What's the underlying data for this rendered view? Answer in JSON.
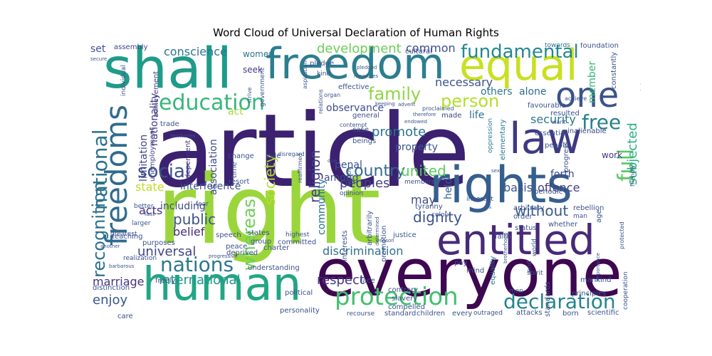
{
  "title": "Word Cloud of Universal Declaration of Human Rights",
  "words": [
    {
      "t": "article",
      "c": "#3b2170"
    },
    {
      "t": "right",
      "c": "#9ad63b"
    },
    {
      "t": "everyone",
      "c": "#3e0751"
    },
    {
      "t": "shall",
      "c": "#1f9b8a"
    },
    {
      "t": "freedom",
      "c": "#2c7e8e"
    },
    {
      "t": "human",
      "c": "#22a685"
    },
    {
      "t": "rights",
      "c": "#355f8d"
    },
    {
      "t": "equal",
      "c": "#c8e021"
    },
    {
      "t": "one",
      "c": "#3b528b"
    },
    {
      "t": "law",
      "c": "#3e3a82"
    },
    {
      "t": "freedoms",
      "c": "#306b8e"
    },
    {
      "t": "entitled",
      "c": "#482979"
    },
    {
      "t": "education",
      "c": "#35b779"
    },
    {
      "t": "protection",
      "c": "#44bf70"
    },
    {
      "t": "nations",
      "c": "#2a788e"
    },
    {
      "t": "declaration",
      "c": "#25848e"
    },
    {
      "t": "fundamental",
      "c": "#23888e"
    },
    {
      "t": "social",
      "c": "#3b528b"
    },
    {
      "t": "full",
      "c": "#5ac864"
    },
    {
      "t": "free",
      "c": "#27808e"
    },
    {
      "t": "family",
      "c": "#8ed645"
    },
    {
      "t": "person",
      "c": "#b5de2b"
    },
    {
      "t": "development",
      "c": "#6ccd5a"
    },
    {
      "t": "conscience",
      "c": "#2a768e"
    },
    {
      "t": "society",
      "c": "#b5de2b"
    },
    {
      "t": "whereas",
      "c": "#6ece58"
    },
    {
      "t": "national",
      "c": "#2c728e"
    },
    {
      "t": "recognition",
      "c": "#2d708e"
    },
    {
      "t": "country",
      "c": "#31688e"
    },
    {
      "t": "united",
      "c": "#5ec962"
    },
    {
      "t": "religion",
      "c": "#433e85"
    },
    {
      "t": "promote",
      "c": "#2c738e"
    },
    {
      "t": "dignity",
      "c": "#3b528b"
    },
    {
      "t": "without",
      "c": "#38598c"
    },
    {
      "t": "universal",
      "c": "#404688"
    },
    {
      "t": "international",
      "c": "#1f988b"
    },
    {
      "t": "public",
      "c": "#3b528b"
    },
    {
      "t": "discrimination",
      "c": "#2d708e"
    },
    {
      "t": "respect",
      "c": "#453781"
    },
    {
      "t": "enjoy",
      "c": "#39568c"
    },
    {
      "t": "peoples",
      "c": "#424086"
    },
    {
      "t": "security",
      "c": "#2a788e"
    },
    {
      "t": "marriage",
      "c": "#46327e"
    },
    {
      "t": "interference",
      "c": "#3b528b"
    },
    {
      "t": "state",
      "c": "#bddf26"
    },
    {
      "t": "acts",
      "c": "#46327e"
    },
    {
      "t": "including",
      "c": "#3e4a89"
    },
    {
      "t": "belief",
      "c": "#472c7a"
    },
    {
      "t": "offence",
      "c": "#433e85"
    },
    {
      "t": "basis",
      "c": "#3b528b"
    },
    {
      "t": "forth",
      "c": "#3e4989"
    },
    {
      "t": "subjected",
      "c": "#29af7f"
    },
    {
      "t": "member",
      "c": "#35b779"
    },
    {
      "t": "alone",
      "c": "#2f6c8e"
    },
    {
      "t": "necessary",
      "c": "#3b528b"
    },
    {
      "t": "common",
      "c": "#3b528b"
    },
    {
      "t": "others",
      "c": "#2a788e"
    },
    {
      "t": "may",
      "c": "#3e4a89"
    },
    {
      "t": "life",
      "c": "#2c728e"
    },
    {
      "t": "observance",
      "c": "#3d4d8a"
    },
    {
      "t": "property",
      "c": "#3b528b"
    },
    {
      "t": "association",
      "c": "#3e4a89"
    },
    {
      "t": "limitation",
      "c": "#414487"
    },
    {
      "t": "nationality",
      "c": "#453882"
    },
    {
      "t": "penal",
      "c": "#3b528b"
    },
    {
      "t": "among",
      "c": "#3d4e8a"
    },
    {
      "t": "act",
      "c": "#a2da37"
    },
    {
      "t": "held",
      "c": "#34608d"
    },
    {
      "t": "community",
      "c": "#2c728e"
    },
    {
      "t": "work",
      "c": "#46327e"
    },
    {
      "t": "women",
      "c": "#2a778e"
    },
    {
      "t": "seek",
      "c": "#443983"
    },
    {
      "t": "set",
      "c": "#3b528b"
    },
    {
      "t": "assembly",
      "c": "#414487"
    },
    {
      "t": "cultural",
      "c": "#3e4a89"
    },
    {
      "t": "effective",
      "c": "#3b528b"
    },
    {
      "t": "general",
      "c": "#3b528b"
    },
    {
      "t": "made",
      "c": "#414487"
    },
    {
      "t": "case",
      "c": "#3b528b"
    },
    {
      "t": "beings",
      "c": "#3b528b"
    },
    {
      "t": "favourable",
      "c": "#3b528b"
    },
    {
      "t": "essential",
      "c": "#3b528b"
    },
    {
      "t": "inalienable",
      "c": "#414487"
    },
    {
      "t": "resulted",
      "c": "#3b528b"
    },
    {
      "t": "periodic",
      "c": "#3b528b"
    },
    {
      "t": "constantly",
      "c": "#3b528b"
    },
    {
      "t": "foundation",
      "c": "#3b528b"
    },
    {
      "t": "proclaims",
      "c": "#3b528b"
    },
    {
      "t": "towards",
      "c": "#2c728e"
    },
    {
      "t": "trade",
      "c": "#3b528b"
    },
    {
      "t": "independent",
      "c": "#46327e"
    },
    {
      "t": "unemployment",
      "c": "#414487"
    },
    {
      "t": "achievement",
      "c": "#414487"
    },
    {
      "t": "change",
      "c": "#3b528b"
    },
    {
      "t": "time",
      "c": "#3b528b"
    },
    {
      "t": "rule",
      "c": "#3b528b"
    },
    {
      "t": "resort",
      "c": "#3b528b"
    },
    {
      "t": "committed",
      "c": "#3b528b"
    },
    {
      "t": "opinion",
      "c": "#3b528b"
    },
    {
      "t": "members",
      "c": "#3b528b"
    },
    {
      "t": "inherent",
      "c": "#3b528b"
    },
    {
      "t": "order",
      "c": "#3b528b"
    },
    {
      "t": "arbitrary",
      "c": "#3b528b"
    },
    {
      "t": "status",
      "c": "#3b528b"
    },
    {
      "t": "whether",
      "c": "#3b528b"
    },
    {
      "t": "man",
      "c": "#3b528b"
    },
    {
      "t": "rebellion",
      "c": "#3b528b"
    },
    {
      "t": "age",
      "c": "#3b528b"
    },
    {
      "t": "people",
      "c": "#3b528b"
    },
    {
      "t": "progress",
      "c": "#3b528b"
    },
    {
      "t": "oppression",
      "c": "#2a788e"
    },
    {
      "t": "elementary",
      "c": "#2a788e"
    },
    {
      "t": "equality",
      "c": "#2a788e"
    },
    {
      "t": "group",
      "c": "#3b528b"
    },
    {
      "t": "states",
      "c": "#3b528b"
    },
    {
      "t": "peace",
      "c": "#3b528b"
    },
    {
      "t": "deprived",
      "c": "#3b528b"
    },
    {
      "t": "charter",
      "c": "#3b528b"
    },
    {
      "t": "speech",
      "c": "#3b528b"
    },
    {
      "t": "highest",
      "c": "#3b528b"
    },
    {
      "t": "interests",
      "c": "#3b528b"
    },
    {
      "t": "arbitrarily",
      "c": "#3b528b"
    },
    {
      "t": "promotion",
      "c": "#3b528b"
    },
    {
      "t": "justice",
      "c": "#3b528b"
    },
    {
      "t": "tyranny",
      "c": "#3b528b"
    },
    {
      "t": "colour",
      "c": "#3b528b"
    },
    {
      "t": "faith",
      "c": "#3b528b"
    },
    {
      "t": "end",
      "c": "#3b528b"
    },
    {
      "t": "world",
      "c": "#3b528b"
    },
    {
      "t": "understanding",
      "c": "#3b528b"
    },
    {
      "t": "political",
      "c": "#3b528b"
    },
    {
      "t": "personality",
      "c": "#3b528b"
    },
    {
      "t": "recourse",
      "c": "#3b528b"
    },
    {
      "t": "standard",
      "c": "#3b528b"
    },
    {
      "t": "children",
      "c": "#3b528b"
    },
    {
      "t": "every",
      "c": "#3b528b"
    },
    {
      "t": "outraged",
      "c": "#3b528b"
    },
    {
      "t": "attacks",
      "c": "#3b528b"
    },
    {
      "t": "born",
      "c": "#3b528b"
    },
    {
      "t": "scientific",
      "c": "#3b528b"
    },
    {
      "t": "race",
      "c": "#3b528b"
    },
    {
      "t": "contrary",
      "c": "#3b528b"
    },
    {
      "t": "slavery",
      "c": "#3b528b"
    },
    {
      "t": "compelled",
      "c": "#3b528b"
    },
    {
      "t": "pay",
      "c": "#3b528b"
    },
    {
      "t": "mind",
      "c": "#3b528b"
    },
    {
      "t": "men",
      "c": "#3b528b"
    },
    {
      "t": "standards",
      "c": "#3b528b"
    },
    {
      "t": "principles",
      "c": "#3b528b"
    },
    {
      "t": "mankind",
      "c": "#3b528b"
    },
    {
      "t": "spirit",
      "c": "#3b528b"
    },
    {
      "t": "cooperation",
      "c": "#3b528b"
    },
    {
      "t": "distinction",
      "c": "#3b528b"
    },
    {
      "t": "freely",
      "c": "#3b528b"
    },
    {
      "t": "care",
      "c": "#3b528b"
    },
    {
      "t": "teaching",
      "c": "#3b528b"
    },
    {
      "t": "purposes",
      "c": "#3b528b"
    },
    {
      "t": "greatest",
      "c": "#3b528b"
    },
    {
      "t": "larger",
      "c": "#3b528b"
    },
    {
      "t": "realization",
      "c": "#3b528b"
    },
    {
      "t": "better",
      "c": "#3b528b"
    },
    {
      "t": "fear",
      "c": "#3b528b"
    },
    {
      "t": "pledge",
      "c": "#3b528b"
    },
    {
      "t": "individual",
      "c": "#3b528b"
    },
    {
      "t": "government",
      "c": "#3b528b"
    },
    {
      "t": "aspiration",
      "c": "#3b528b"
    },
    {
      "t": "kind",
      "c": "#3b528b"
    },
    {
      "t": "relations",
      "c": "#3b528b"
    },
    {
      "t": "organ",
      "c": "#3b528b"
    },
    {
      "t": "contempt",
      "c": "#3b528b"
    },
    {
      "t": "worth",
      "c": "#3b528b"
    },
    {
      "t": "reaffirmed",
      "c": "#3b528b"
    },
    {
      "t": "proclaimed",
      "c": "#3b528b"
    },
    {
      "t": "want",
      "c": "#3b528b"
    },
    {
      "t": "achieve",
      "c": "#3b528b"
    },
    {
      "t": "measures",
      "c": "#3b528b"
    },
    {
      "t": "pledged",
      "c": "#3b528b"
    },
    {
      "t": "territories",
      "c": "#3b528b"
    },
    {
      "t": "secure",
      "c": "#3b528b"
    },
    {
      "t": "disregard",
      "c": "#3b528b"
    },
    {
      "t": "strive",
      "c": "#3b528b"
    },
    {
      "t": "keeping",
      "c": "#3b528b"
    },
    {
      "t": "advent",
      "c": "#3b528b"
    },
    {
      "t": "endowed",
      "c": "#3b528b"
    },
    {
      "t": "therefore",
      "c": "#3b528b"
    },
    {
      "t": "reason",
      "c": "#3b528b"
    },
    {
      "t": "determined",
      "c": "#3b528b"
    },
    {
      "t": "due",
      "c": "#3b528b"
    },
    {
      "t": "brotherhood",
      "c": "#3b528b"
    },
    {
      "t": "friendly",
      "c": "#3b528b"
    },
    {
      "t": "protected",
      "c": "#3b528b"
    },
    {
      "t": "sex",
      "c": "#3b528b"
    },
    {
      "t": "preamble",
      "c": "#3b528b"
    },
    {
      "t": "progressive",
      "c": "#3b528b"
    },
    {
      "t": "another",
      "c": "#3b528b"
    },
    {
      "t": "barbarous",
      "c": "#3b528b"
    },
    {
      "t": "importance",
      "c": "#3b528b"
    },
    {
      "t": "last",
      "c": "#3b528b"
    }
  ]
}
